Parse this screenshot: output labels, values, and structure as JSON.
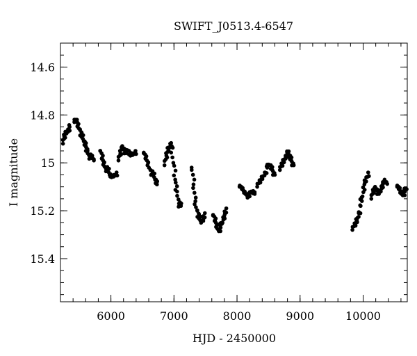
{
  "chart_data": {
    "type": "scatter",
    "title": "SWIFT_J0513.4-6547",
    "xlabel": "HJD - 2450000",
    "ylabel": "I magnitude",
    "xlim": [
      5200,
      10700
    ],
    "ylim": [
      15.58,
      14.5
    ],
    "y_inverted": true,
    "grid": false,
    "legend": "none",
    "marker_color": "#000000",
    "x_ticks": [
      "6000",
      "7000",
      "8000",
      "9000",
      "10000"
    ],
    "y_ticks": [
      "14.6",
      "14.8",
      "15",
      "15.2",
      "15.4"
    ],
    "segments": [
      {
        "x": [
          5240,
          5260,
          5290,
          5320,
          5345
        ],
        "y": [
          14.92,
          14.89,
          14.87,
          14.86,
          14.85
        ]
      },
      {
        "x": [
          5420,
          5450,
          5480,
          5510,
          5540,
          5570,
          5600,
          5630,
          5660,
          5700,
          5730
        ],
        "y": [
          14.83,
          14.82,
          14.84,
          14.86,
          14.89,
          14.91,
          14.93,
          14.95,
          14.97,
          14.98,
          14.99
        ]
      },
      {
        "x": [
          5830,
          5860,
          5890,
          5920,
          5950,
          5980,
          6010,
          6050,
          6090
        ],
        "y": [
          14.95,
          14.98,
          15.0,
          15.02,
          15.03,
          15.05,
          15.06,
          15.05,
          15.04
        ]
      },
      {
        "x": [
          6120,
          6150,
          6180,
          6210,
          6240,
          6270,
          6310,
          6350,
          6390
        ],
        "y": [
          14.99,
          14.96,
          14.93,
          14.94,
          14.96,
          14.95,
          14.97,
          14.96,
          14.95
        ]
      },
      {
        "x": [
          6520,
          6550,
          6590,
          6630,
          6670,
          6700,
          6730
        ],
        "y": [
          14.96,
          14.98,
          15.0,
          15.03,
          15.05,
          15.07,
          15.09
        ]
      },
      {
        "x": [
          6850,
          6880,
          6910,
          6940,
          6960,
          6990,
          7020,
          7050,
          7080,
          7110
        ],
        "y": [
          15.01,
          14.97,
          14.94,
          14.92,
          14.93,
          15.0,
          15.07,
          15.12,
          15.17,
          15.18
        ]
      },
      {
        "x": [
          7280,
          7310,
          7340,
          7370,
          7400,
          7430,
          7460,
          7490
        ],
        "y": [
          15.02,
          15.09,
          15.16,
          15.2,
          15.23,
          15.25,
          15.24,
          15.21
        ]
      },
      {
        "x": [
          7620,
          7650,
          7680,
          7710,
          7740,
          7770,
          7800,
          7830
        ],
        "y": [
          15.22,
          15.24,
          15.26,
          15.28,
          15.27,
          15.25,
          15.22,
          15.19
        ]
      },
      {
        "x": [
          8040,
          8080,
          8120,
          8160,
          8200,
          8240,
          8280
        ],
        "y": [
          15.1,
          15.11,
          15.12,
          15.13,
          15.14,
          15.12,
          15.13
        ]
      },
      {
        "x": [
          8320,
          8360,
          8400,
          8440,
          8480,
          8520,
          8560,
          8600
        ],
        "y": [
          15.1,
          15.08,
          15.06,
          15.04,
          15.02,
          15.01,
          15.03,
          15.05
        ]
      },
      {
        "x": [
          8680,
          8710,
          8740,
          8770,
          8800,
          8830,
          8860,
          8900
        ],
        "y": [
          15.03,
          15.01,
          14.99,
          14.97,
          14.96,
          14.97,
          14.99,
          15.01
        ]
      },
      {
        "x": [
          9830,
          9870,
          9900,
          9930,
          9960,
          9990,
          10020,
          10050,
          10080
        ],
        "y": [
          15.28,
          15.26,
          15.24,
          15.21,
          15.18,
          15.14,
          15.09,
          15.06,
          15.04
        ]
      },
      {
        "x": [
          10130,
          10160,
          10190,
          10220,
          10250,
          10280,
          10310,
          10340,
          10370
        ],
        "y": [
          15.15,
          15.12,
          15.1,
          15.11,
          15.13,
          15.12,
          15.09,
          15.07,
          15.08
        ]
      },
      {
        "x": [
          10540,
          10570,
          10600,
          10630,
          10660,
          10690
        ],
        "y": [
          15.1,
          15.11,
          15.12,
          15.13,
          15.12,
          15.11
        ]
      }
    ]
  }
}
